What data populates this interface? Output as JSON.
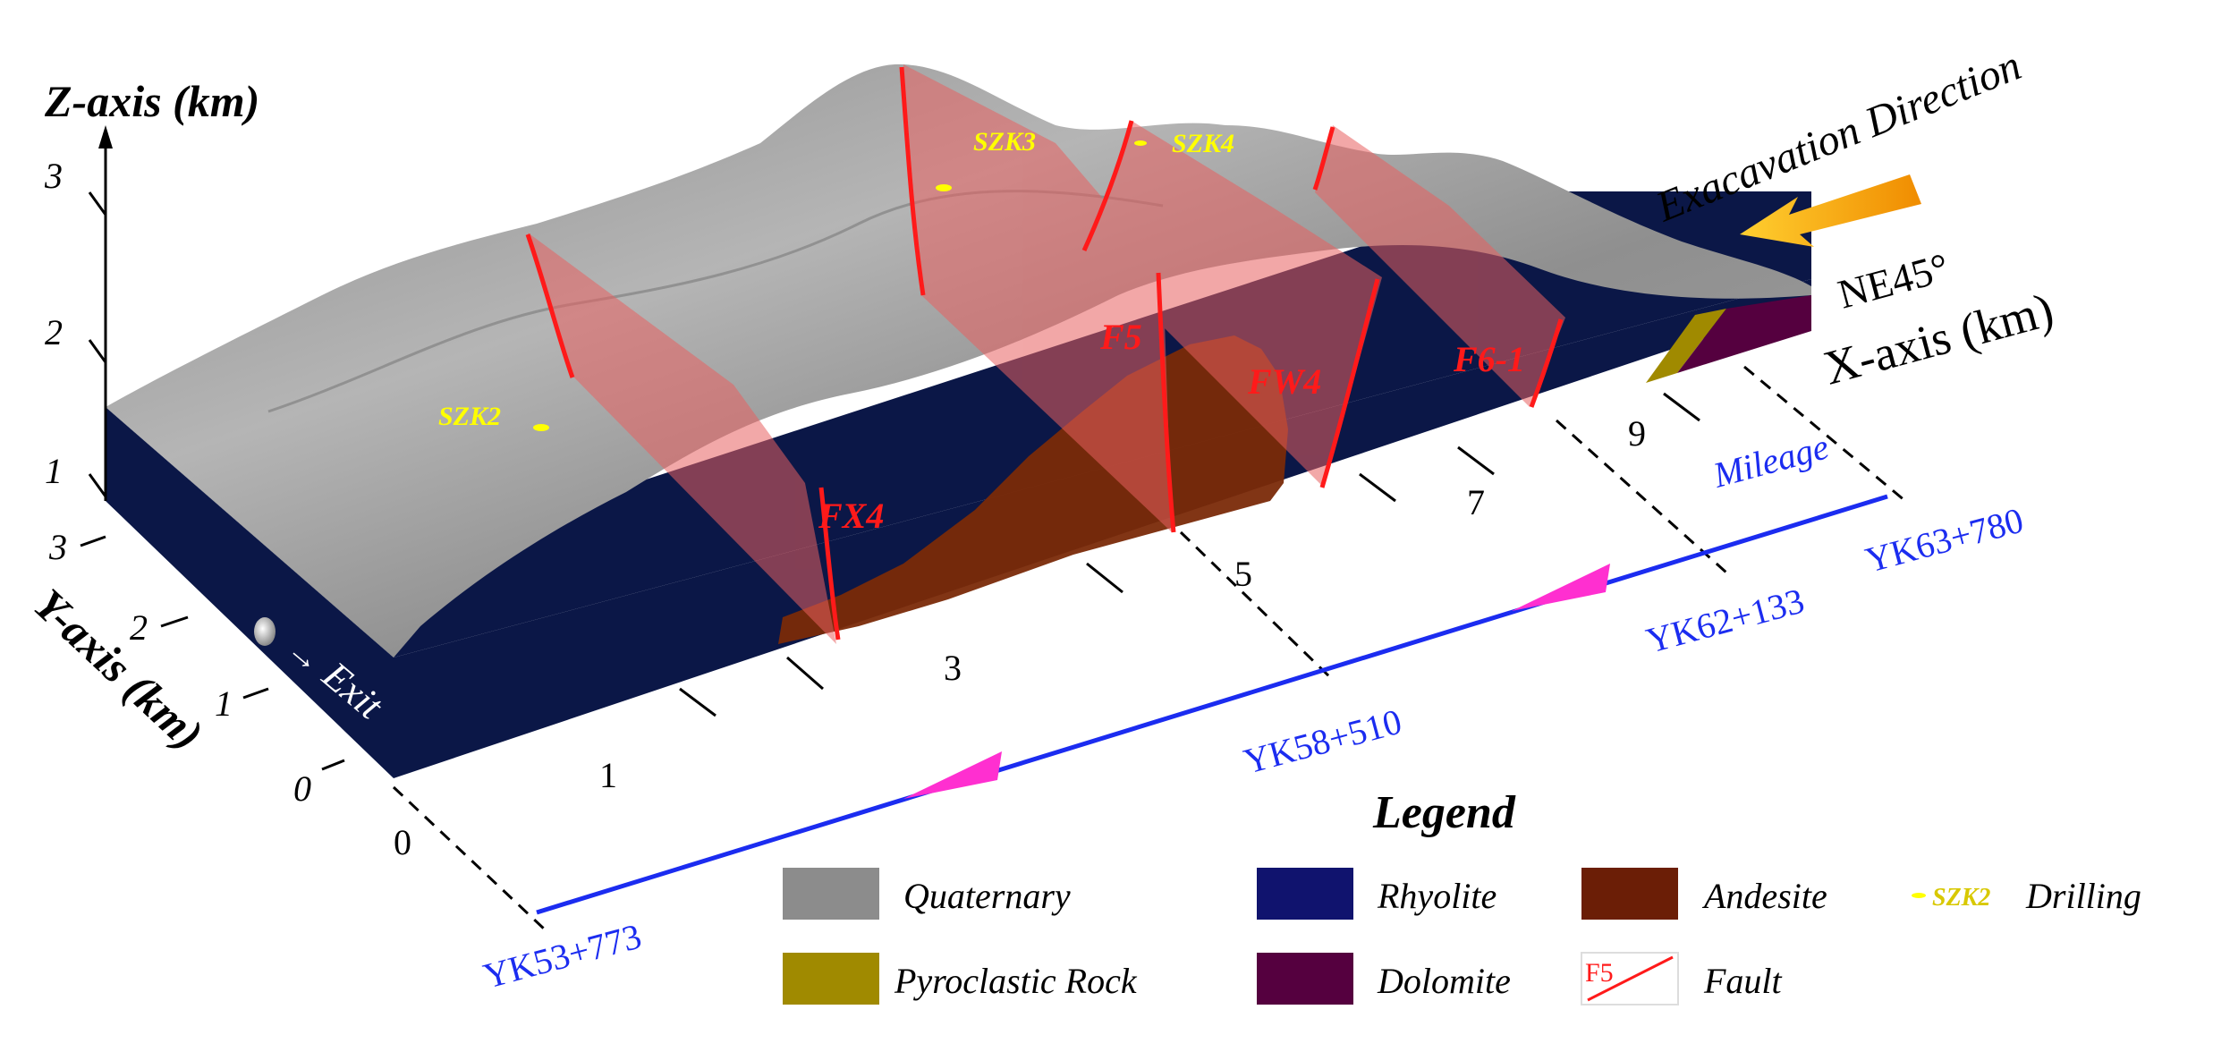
{
  "axes": {
    "z_title": "Z-axis (km)",
    "x_title": "X-axis (km)",
    "y_title": "Y-axis (km)",
    "z_ticks": [
      "1",
      "2",
      "3"
    ],
    "y_ticks": [
      "0",
      "1",
      "2",
      "3"
    ],
    "x_ticks": [
      "0",
      "1",
      "3",
      "5",
      "7",
      "9"
    ]
  },
  "orientation": {
    "direction_label": "NE45°"
  },
  "excavation": {
    "label": "Exacavation Direction",
    "arrow_color": "#f7a800"
  },
  "exit_label": "Exit",
  "drilling": [
    {
      "id": "SZK2"
    },
    {
      "id": "SZK3"
    },
    {
      "id": "SZK4"
    }
  ],
  "faults": [
    {
      "id": "FX4"
    },
    {
      "id": "F5"
    },
    {
      "id": "FW4"
    },
    {
      "id": "F6-1"
    }
  ],
  "mileage": {
    "title": "Mileage",
    "stations": [
      "YK53+773",
      "YK58+510",
      "YK62+133",
      "YK63+780"
    ],
    "line_color": "#1b2cf0",
    "arrow_color": "#ff2fd0"
  },
  "legend": {
    "title": "Legend",
    "items": [
      {
        "label": "Quaternary",
        "color": "#8c8c8c"
      },
      {
        "label": "Rhyolite",
        "color": "#10136e"
      },
      {
        "label": "Andesite",
        "color": "#6b1e06"
      },
      {
        "label": "Drilling",
        "sample": "SZK2",
        "color": "#ffff00"
      },
      {
        "label": "Pyroclastic Rock",
        "color": "#a08a00"
      },
      {
        "label": "Dolomite",
        "color": "#55003f"
      },
      {
        "label": "Fault",
        "sample": "F5",
        "color": "#ff1a1a"
      }
    ]
  },
  "colors": {
    "rhyolite_face": "#0b1747",
    "quaternary_top": "#9a9a9a",
    "andesite": "#6b2a0a",
    "fault_plane": "#e86060",
    "fault_trace": "#ff1a1a"
  }
}
